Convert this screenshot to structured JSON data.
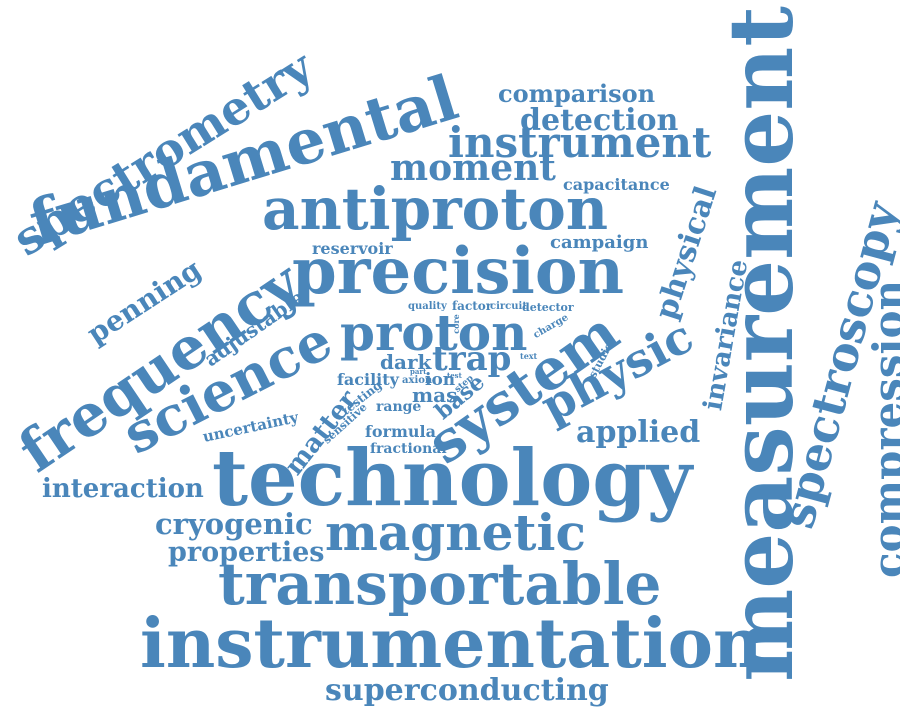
{
  "word_cloud": {
    "color": "#4a86ba",
    "words": {
      "measurement": "measurement",
      "technology": "technology",
      "precision": "precision",
      "instrumentation": "instrumentation",
      "fundamental": "fundamental",
      "antiproton": "antiproton",
      "transportable": "transportable",
      "frequency": "frequency",
      "science": "science",
      "system": "system",
      "spectrometry": "spectrometry",
      "spectroscopy": "spectroscopy",
      "compression": "compression",
      "magnetic": "magnetic",
      "proton": "proton",
      "instrument": "instrument",
      "physic": "physic",
      "superconducting": "superconducting",
      "cryogenic": "cryogenic",
      "properties": "properties",
      "interaction": "interaction",
      "penning": "penning",
      "moment": "moment",
      "detection": "detection",
      "comparison": "comparison",
      "physical": "physical",
      "invariance": "invariance",
      "applied": "applied",
      "trap": "trap",
      "matter": "matter",
      "adjustable": "adjustable",
      "capacitance": "capacitance",
      "campaign": "campaign",
      "reservoir": "reservoir",
      "base": "base",
      "dark": "dark",
      "facility": "facility",
      "ion": "ion",
      "mas": "mas",
      "range": "range",
      "uncertainty": "uncertainty",
      "formula": "formula",
      "fractional": "fractional",
      "testing": "testing",
      "sensitive": "sensitive",
      "axion": "axion",
      "studies": "studies",
      "quality": "quality",
      "factor": "factor",
      "circuit": "circuit",
      "detector": "detector",
      "charge": "charge",
      "core": "core",
      "text": "text",
      "part": "part",
      "step": "step",
      "test": "test"
    }
  }
}
